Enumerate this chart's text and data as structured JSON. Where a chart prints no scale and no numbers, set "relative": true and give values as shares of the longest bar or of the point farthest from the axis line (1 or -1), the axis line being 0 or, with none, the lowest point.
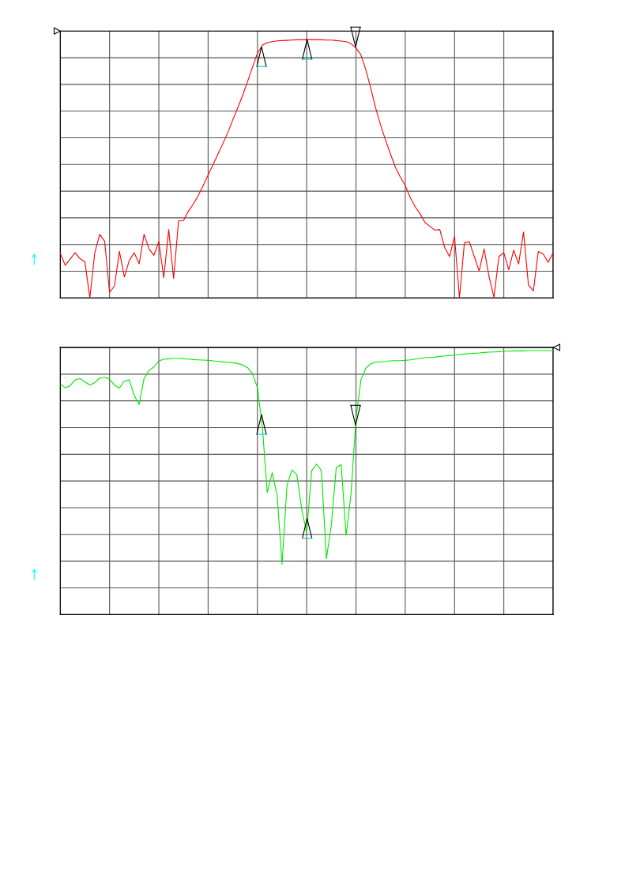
{
  "chart_data": [
    {
      "type": "line",
      "relative": true,
      "grid": true,
      "categories": [
        null,
        null,
        null,
        null,
        null,
        null,
        null,
        null,
        null,
        null,
        null,
        null,
        null,
        null,
        null,
        null,
        null,
        null,
        null,
        null,
        null,
        null,
        null,
        null,
        null,
        null,
        null,
        null,
        null,
        null,
        null,
        null,
        null,
        null,
        null,
        null,
        null,
        null,
        null,
        null,
        null,
        null,
        null,
        null,
        null,
        null,
        null,
        null,
        null,
        null,
        null,
        null,
        null,
        null,
        null,
        null,
        null,
        null,
        null,
        null,
        null,
        null,
        null,
        null,
        null,
        null,
        null,
        null,
        null,
        null,
        null,
        null,
        null,
        null,
        null,
        null,
        null,
        null,
        null,
        null,
        null,
        null,
        null,
        null,
        null,
        null,
        null,
        null,
        null,
        null,
        null,
        null,
        null,
        null,
        null,
        null,
        null,
        null,
        null,
        null,
        null
      ],
      "series": [
        {
          "color": "#ff0000",
          "values": [
            0.173,
            0.126,
            0.15,
            0.175,
            0.152,
            0.139,
            0.0,
            0.175,
            0.246,
            0.22,
            0.022,
            0.046,
            0.18,
            0.081,
            0.145,
            0.175,
            0.132,
            0.246,
            0.19,
            0.165,
            0.218,
            0.078,
            0.264,
            0.075,
            0.298,
            0.299,
            0.336,
            0.363,
            0.397,
            0.435,
            0.476,
            0.516,
            0.557,
            0.598,
            0.64,
            0.689,
            0.735,
            0.784,
            0.837,
            0.893,
            0.947,
            0.978,
            0.988,
            0.992,
            0.995,
            0.996,
            0.997,
            0.998,
            0.999,
            0.999,
            1.0,
            1.0,
            0.999,
            0.999,
            0.998,
            0.998,
            0.996,
            0.994,
            0.992,
            0.984,
            0.967,
            0.941,
            0.883,
            0.812,
            0.735,
            0.669,
            0.611,
            0.557,
            0.506,
            0.468,
            0.435,
            0.389,
            0.353,
            0.326,
            0.292,
            0.277,
            0.262,
            0.265,
            0.195,
            0.16,
            0.238,
            0.0,
            0.213,
            0.218,
            0.16,
            0.104,
            0.19,
            0.083,
            0.002,
            0.16,
            0.175,
            0.109,
            0.185,
            0.131,
            0.255,
            0.05,
            0.027,
            0.18,
            0.17,
            0.138,
            0.175
          ]
        }
      ]
    },
    {
      "type": "line",
      "relative": true,
      "grid": true,
      "categories": [
        null,
        null,
        null,
        null,
        null,
        null,
        null,
        null,
        null,
        null,
        null,
        null,
        null,
        null,
        null,
        null,
        null,
        null,
        null,
        null,
        null,
        null,
        null,
        null,
        null,
        null,
        null,
        null,
        null,
        null,
        null,
        null,
        null,
        null,
        null,
        null,
        null,
        null,
        null,
        null,
        null,
        null,
        null,
        null,
        null,
        null,
        null,
        null,
        null,
        null,
        null,
        null,
        null,
        null,
        null,
        null,
        null,
        null,
        null,
        null,
        null,
        null,
        null,
        null,
        null,
        null,
        null,
        null,
        null,
        null,
        null,
        null,
        null,
        null,
        null,
        null,
        null,
        null,
        null,
        null,
        null,
        null,
        null,
        null,
        null,
        null,
        null,
        null,
        null,
        null,
        null,
        null,
        null,
        null,
        null,
        null,
        null,
        null,
        null,
        null,
        null
      ],
      "series": [
        {
          "color": "#00e800",
          "values": [
            0.874,
            0.859,
            0.867,
            0.889,
            0.894,
            0.882,
            0.869,
            0.879,
            0.896,
            0.899,
            0.892,
            0.869,
            0.858,
            0.884,
            0.889,
            0.83,
            0.796,
            0.894,
            0.925,
            0.938,
            0.961,
            0.967,
            0.969,
            0.97,
            0.97,
            0.969,
            0.968,
            0.966,
            0.965,
            0.964,
            0.963,
            0.961,
            0.959,
            0.957,
            0.956,
            0.954,
            0.951,
            0.946,
            0.935,
            0.914,
            0.859,
            0.712,
            0.462,
            0.537,
            0.452,
            0.191,
            0.488,
            0.548,
            0.53,
            0.398,
            0.31,
            0.545,
            0.57,
            0.545,
            0.211,
            0.339,
            0.557,
            0.568,
            0.3,
            0.457,
            0.742,
            0.889,
            0.933,
            0.95,
            0.956,
            0.958,
            0.959,
            0.961,
            0.962,
            0.962,
            0.963,
            0.965,
            0.968,
            0.97,
            0.973,
            0.974,
            0.975,
            0.978,
            0.98,
            0.981,
            0.983,
            0.985,
            0.987,
            0.989,
            0.99,
            0.991,
            0.993,
            0.994,
            0.995,
            0.996,
            0.997,
            0.998,
            0.999,
            0.999,
            0.999,
            1.0,
            1.0,
            1.0,
            1.0,
            1.0,
            1.0
          ]
        }
      ]
    }
  ]
}
